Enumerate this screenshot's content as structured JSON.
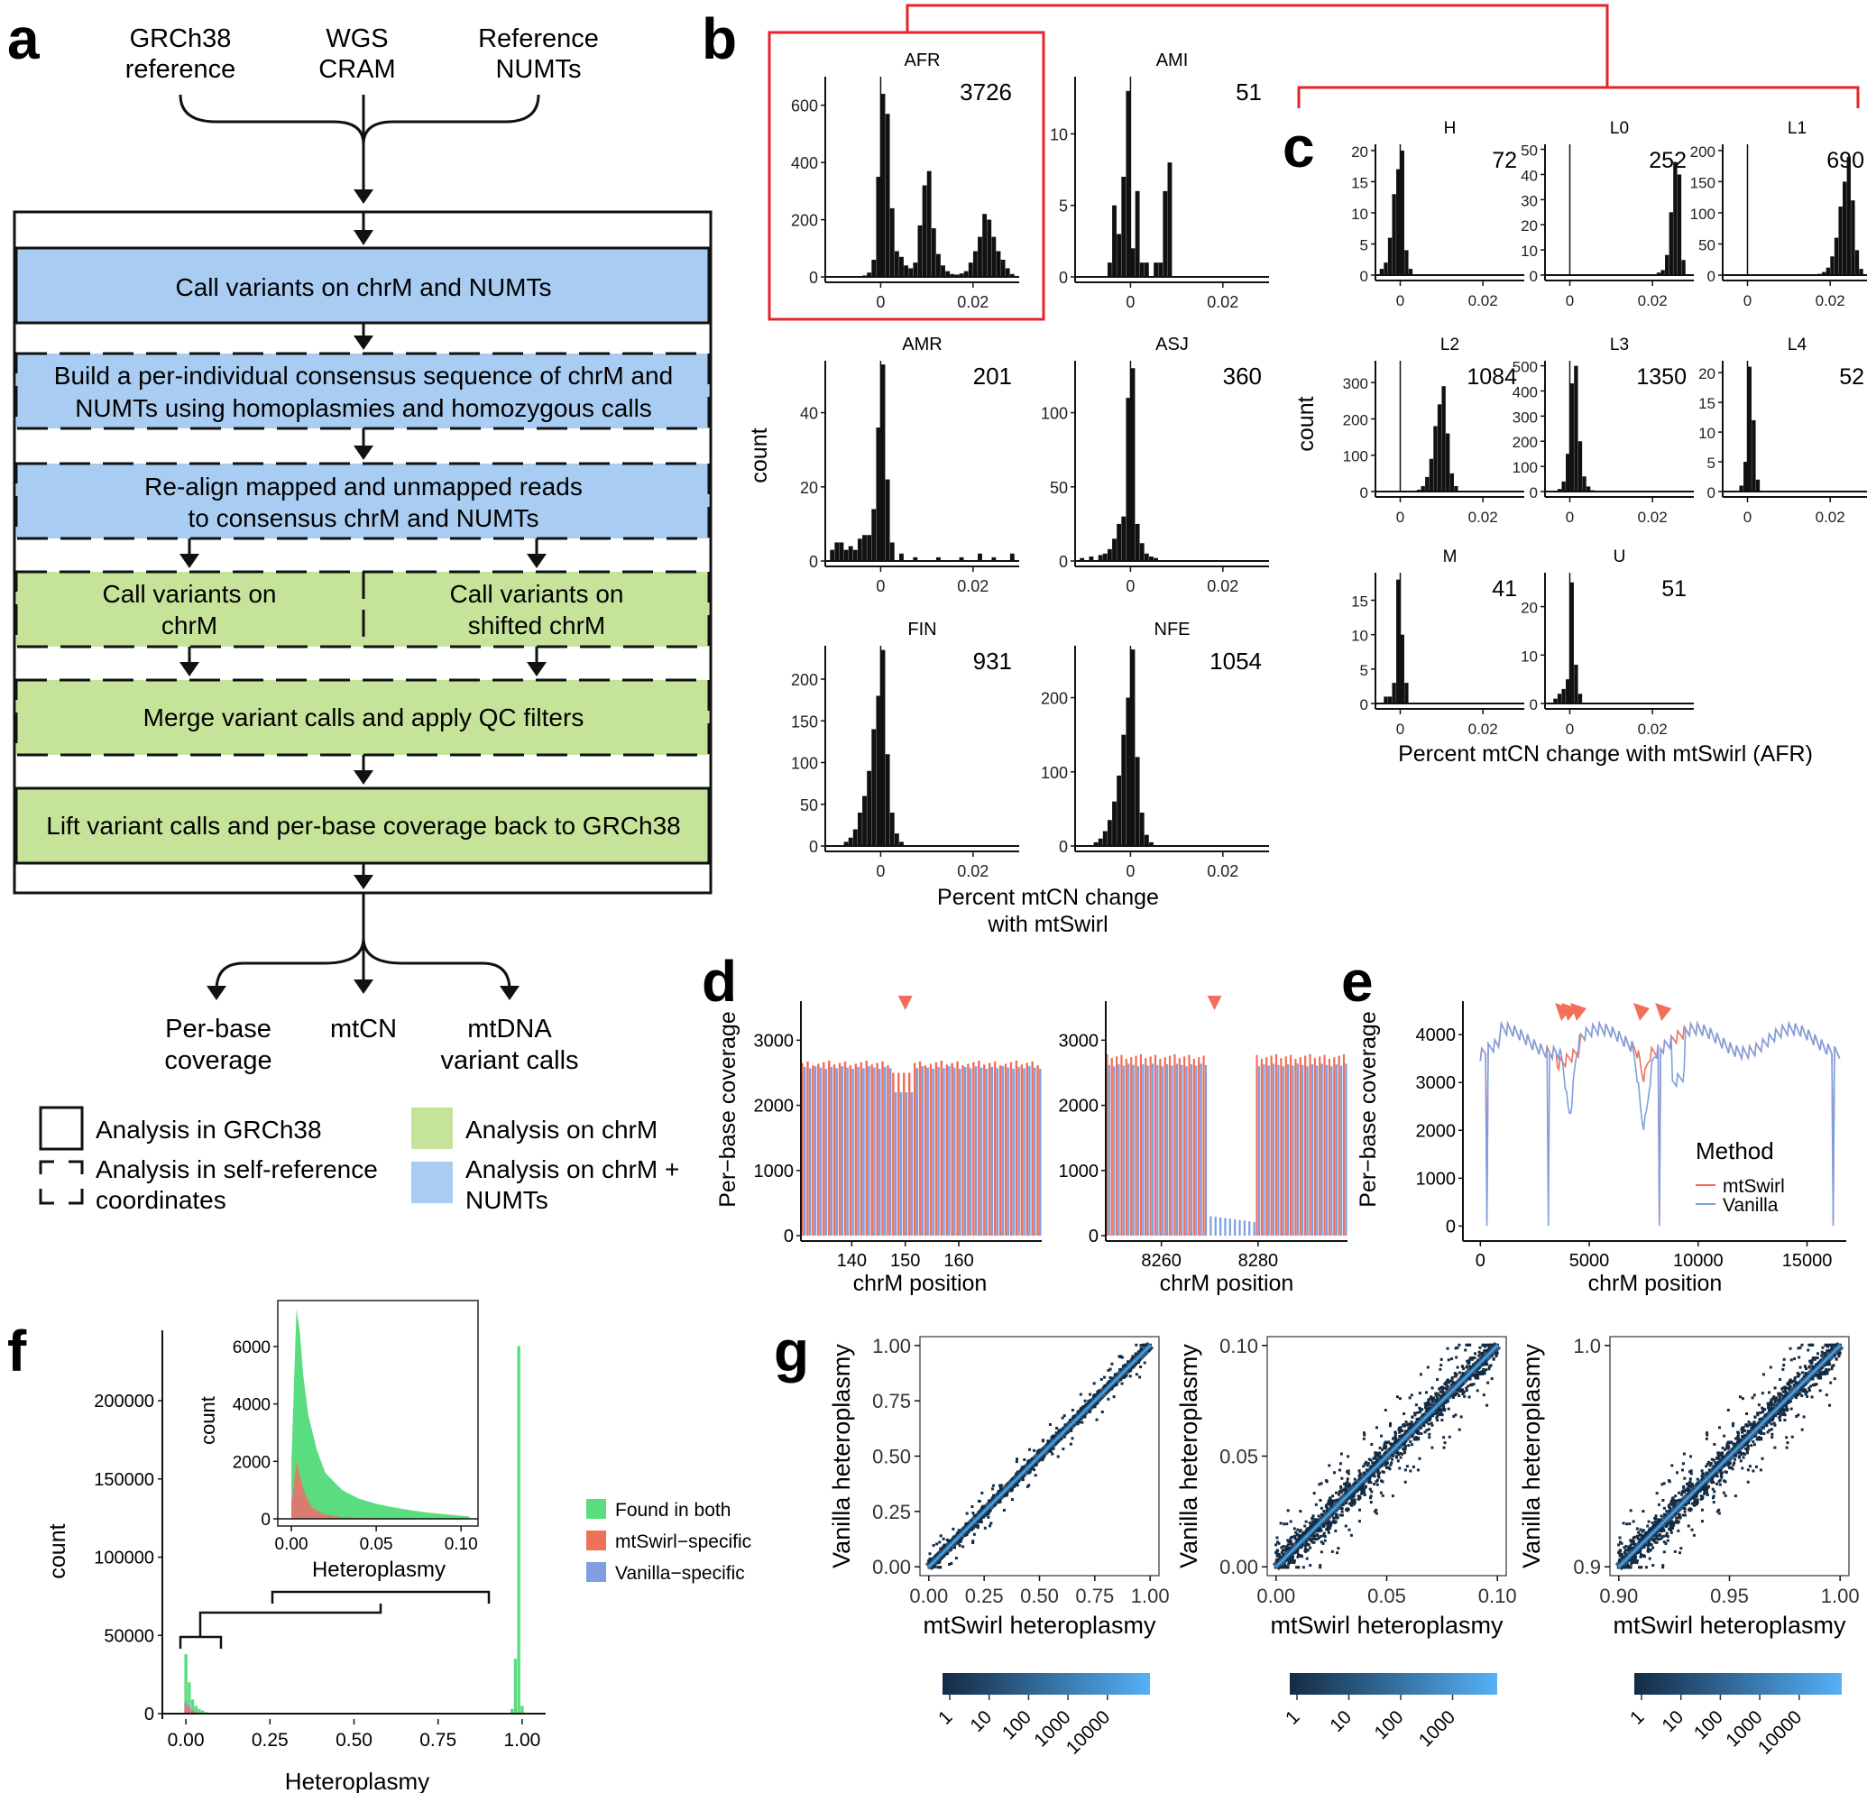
{
  "panels": {
    "a": {
      "letter": "a",
      "inputs": [
        [
          "GRCh38",
          "reference"
        ],
        [
          "WGS",
          "CRAM"
        ],
        [
          "Reference",
          "NUMTs"
        ]
      ],
      "steps": [
        [
          "Call variants on chrM and NUMTs"
        ],
        [
          "Build a per-individual consensus sequence of chrM and",
          "NUMTs using homoplasmies and homozygous calls"
        ],
        [
          "Re-align mapped and unmapped reads",
          "to consensus chrM and NUMTs"
        ],
        [
          "Call variants on",
          "chrM"
        ],
        [
          "Call variants on",
          "shifted chrM"
        ],
        [
          "Merge variant calls and apply QC filters"
        ],
        [
          "Lift variant calls and per-base coverage back to GRCh38"
        ]
      ],
      "outputs": [
        [
          "Per-base",
          "coverage"
        ],
        [
          "mtCN"
        ],
        [
          "mtDNA",
          "variant calls"
        ]
      ],
      "legend": {
        "grch38": "Analysis in GRCh38",
        "self_ref": [
          "Analysis in self-reference",
          "coordinates"
        ],
        "chrm": "Analysis on chrM",
        "chrm_numts": [
          "Analysis on chrM +",
          "NUMTs"
        ]
      },
      "colors": {
        "blue": "#a9cdf2",
        "green": "#c6e39a"
      }
    },
    "b": {
      "letter": "b",
      "xlabel": [
        "Percent mtCN change",
        "with mtSwirl"
      ],
      "ylabel": "count"
    },
    "c": {
      "letter": "c",
      "xlabel": "Percent mtCN change with mtSwirl (AFR)",
      "ylabel": "count"
    },
    "d": {
      "letter": "d",
      "ylabel": "Per−base coverage",
      "xlabel": "chrM position"
    },
    "e": {
      "letter": "e",
      "ylabel": "Per−base coverage",
      "xlabel": "chrM position",
      "legend_title": "Method",
      "legend_items": [
        "mtSwirl",
        "Vanilla"
      ]
    },
    "f": {
      "letter": "f",
      "xlabel": "Heteroplasmy",
      "ylabel": "count",
      "inset_xlabel": "Heteroplasmy",
      "inset_ylabel": "count",
      "legend_items": [
        "Found in both",
        "mtSwirl−specific",
        "Vanilla−specific"
      ]
    },
    "g": {
      "letter": "g",
      "xlabel": "mtSwirl heteroplasmy",
      "ylabel": "Vanilla heteroplasmy"
    }
  },
  "colors": {
    "accent_red": "#e3242b",
    "mtswirl": "#f0705a",
    "vanilla": "#7f9fe0",
    "found_both": "#59dd7e",
    "hist_black": "#111111",
    "density_dark": "#132b43",
    "density_light": "#56b1f7"
  },
  "chart_data": [
    {
      "id": "b-AFR",
      "type": "bar",
      "title": "AFR",
      "n_label": "3726",
      "xlim": [
        -0.012,
        0.03
      ],
      "ylim": [
        0,
        700
      ],
      "yticks": [
        "0",
        "200",
        "400",
        "600"
      ],
      "xticks": [
        "0",
        "0.02"
      ],
      "x": [
        -0.0035,
        -0.0025,
        -0.0015,
        -0.0005,
        0.0005,
        0.0015,
        0.0025,
        0.0035,
        0.0045,
        0.0055,
        0.0065,
        0.0075,
        0.0085,
        0.0095,
        0.0105,
        0.0115,
        0.0125,
        0.0135,
        0.0145,
        0.0155,
        0.0165,
        0.0175,
        0.0185,
        0.0195,
        0.0205,
        0.0215,
        0.0225,
        0.0235,
        0.0245,
        0.0255,
        0.0265,
        0.0275,
        0.0285
      ],
      "values": [
        5,
        15,
        60,
        350,
        640,
        570,
        240,
        90,
        70,
        40,
        30,
        50,
        180,
        320,
        370,
        170,
        80,
        40,
        20,
        10,
        8,
        12,
        20,
        50,
        90,
        140,
        220,
        200,
        140,
        90,
        60,
        30,
        10
      ]
    },
    {
      "id": "b-AMI",
      "type": "bar",
      "title": "AMI",
      "n_label": "51",
      "xlim": [
        -0.012,
        0.03
      ],
      "ylim": [
        0,
        14
      ],
      "yticks": [
        "0",
        "5",
        "10"
      ],
      "xticks": [
        "0",
        "0.02"
      ],
      "x": [
        -0.0045,
        -0.0035,
        -0.0025,
        -0.0015,
        -0.0005,
        0.0005,
        0.0015,
        0.0025,
        0.0035,
        0.0045,
        0.0055,
        0.0065,
        0.0075,
        0.0085
      ],
      "values": [
        1,
        5,
        3,
        7,
        13,
        2,
        6,
        1,
        1,
        0,
        1,
        1,
        6,
        8
      ]
    },
    {
      "id": "b-AMR",
      "type": "bar",
      "title": "AMR",
      "n_label": "201",
      "xlim": [
        -0.012,
        0.03
      ],
      "ylim": [
        0,
        54
      ],
      "yticks": [
        "0",
        "20",
        "40"
      ],
      "xticks": [
        "0",
        "0.02"
      ],
      "x": [
        -0.0105,
        -0.0095,
        -0.0085,
        -0.0075,
        -0.0065,
        -0.0055,
        -0.0045,
        -0.0035,
        -0.0025,
        -0.0015,
        -0.0005,
        0.0005,
        0.0015,
        0.0025,
        0.0045,
        0.0075,
        0.0125,
        0.0175,
        0.0215,
        0.0245,
        0.0285
      ],
      "values": [
        3,
        5,
        5,
        3,
        4,
        3,
        6,
        7,
        7,
        14,
        36,
        53,
        22,
        5,
        2,
        1,
        1,
        1,
        2,
        1,
        2
      ]
    },
    {
      "id": "b-ASJ",
      "type": "bar",
      "title": "ASJ",
      "n_label": "360",
      "xlim": [
        -0.012,
        0.03
      ],
      "ylim": [
        0,
        135
      ],
      "yticks": [
        "0",
        "50",
        "100"
      ],
      "xticks": [
        "0",
        "0.02"
      ],
      "x": [
        -0.0105,
        -0.0085,
        -0.0065,
        -0.0055,
        -0.0045,
        -0.0035,
        -0.0025,
        -0.0015,
        -0.0005,
        0.0005,
        0.0015,
        0.0025,
        0.0035,
        0.0045,
        0.0055
      ],
      "values": [
        2,
        3,
        4,
        5,
        8,
        15,
        25,
        30,
        110,
        130,
        25,
        12,
        5,
        3,
        2
      ]
    },
    {
      "id": "b-FIN",
      "type": "bar",
      "title": "FIN",
      "n_label": "931",
      "xlim": [
        -0.012,
        0.03
      ],
      "ylim": [
        0,
        240
      ],
      "yticks": [
        "0",
        "50",
        "100",
        "150",
        "200"
      ],
      "xticks": [
        "0",
        "0.02"
      ],
      "x": [
        -0.0075,
        -0.0065,
        -0.0055,
        -0.0045,
        -0.0035,
        -0.0025,
        -0.0015,
        -0.0005,
        0.0005,
        0.0015,
        0.0025,
        0.0035,
        0.0045
      ],
      "values": [
        5,
        10,
        20,
        40,
        60,
        90,
        140,
        180,
        235,
        110,
        40,
        15,
        5
      ]
    },
    {
      "id": "b-NFE",
      "type": "bar",
      "title": "NFE",
      "n_label": "1054",
      "xlim": [
        -0.012,
        0.03
      ],
      "ylim": [
        0,
        270
      ],
      "yticks": [
        "0",
        "100",
        "200"
      ],
      "xticks": [
        "0",
        "0.02"
      ],
      "x": [
        -0.0075,
        -0.0065,
        -0.0055,
        -0.0045,
        -0.0035,
        -0.0025,
        -0.0015,
        -0.0005,
        0.0005,
        0.0015,
        0.0025,
        0.0035,
        0.0045
      ],
      "values": [
        5,
        10,
        20,
        35,
        60,
        95,
        150,
        200,
        265,
        120,
        45,
        15,
        5
      ]
    },
    {
      "id": "c-H",
      "type": "bar",
      "title": "H",
      "n_label": "72",
      "xlim": [
        -0.006,
        0.03
      ],
      "ylim": [
        0,
        21
      ],
      "yticks": [
        "0",
        "5",
        "10",
        "15",
        "20"
      ],
      "xticks": [
        "0",
        "0.02"
      ],
      "x": [
        -0.0045,
        -0.0035,
        -0.0025,
        -0.0015,
        -0.0005,
        0.0005,
        0.0015,
        0.0025
      ],
      "values": [
        1,
        2,
        6,
        13,
        17,
        20,
        4,
        1
      ]
    },
    {
      "id": "c-L0",
      "type": "bar",
      "title": "L0",
      "n_label": "252",
      "xlim": [
        -0.006,
        0.03
      ],
      "ylim": [
        0,
        52
      ],
      "yticks": [
        "0",
        "10",
        "20",
        "30",
        "40",
        "50"
      ],
      "xticks": [
        "0",
        "0.02"
      ],
      "x": [
        0.0215,
        0.0225,
        0.0235,
        0.0245,
        0.0255,
        0.0265,
        0.0275
      ],
      "values": [
        1,
        2,
        8,
        25,
        45,
        40,
        6
      ]
    },
    {
      "id": "c-L1",
      "type": "bar",
      "title": "L1",
      "n_label": "690",
      "xlim": [
        -0.006,
        0.03
      ],
      "ylim": [
        0,
        210
      ],
      "yticks": [
        "0",
        "50",
        "100",
        "150",
        "200"
      ],
      "xticks": [
        "0",
        "0.02"
      ],
      "x": [
        0.0175,
        0.0185,
        0.0195,
        0.0205,
        0.0215,
        0.0225,
        0.0235,
        0.0245,
        0.0255,
        0.0265,
        0.0275
      ],
      "values": [
        2,
        5,
        12,
        30,
        60,
        110,
        150,
        190,
        120,
        40,
        10
      ]
    },
    {
      "id": "c-L2",
      "type": "bar",
      "title": "L2",
      "n_label": "1084",
      "xlim": [
        -0.006,
        0.03
      ],
      "ylim": [
        0,
        360
      ],
      "yticks": [
        "0",
        "100",
        "200",
        "300"
      ],
      "xticks": [
        "0",
        "0.02"
      ],
      "x": [
        0.0045,
        0.0055,
        0.0065,
        0.0075,
        0.0085,
        0.0095,
        0.0105,
        0.0115,
        0.0125,
        0.0135
      ],
      "values": [
        5,
        15,
        40,
        90,
        180,
        240,
        290,
        160,
        50,
        15
      ]
    },
    {
      "id": "c-L3",
      "type": "bar",
      "title": "L3",
      "n_label": "1350",
      "xlim": [
        -0.006,
        0.03
      ],
      "ylim": [
        0,
        520
      ],
      "yticks": [
        "0",
        "100",
        "200",
        "300",
        "400",
        "500"
      ],
      "xticks": [
        "0",
        "0.02"
      ],
      "x": [
        -0.0025,
        -0.0015,
        -0.0005,
        0.0005,
        0.0015,
        0.0025,
        0.0035,
        0.0045,
        0.0055
      ],
      "values": [
        10,
        40,
        150,
        430,
        500,
        200,
        60,
        20,
        5
      ]
    },
    {
      "id": "c-L4",
      "type": "bar",
      "title": "L4",
      "n_label": "52",
      "xlim": [
        -0.006,
        0.03
      ],
      "ylim": [
        0,
        22
      ],
      "yticks": [
        "0",
        "5",
        "10",
        "15",
        "20"
      ],
      "xticks": [
        "0",
        "0.02"
      ],
      "x": [
        -0.0015,
        -0.0005,
        0.0005,
        0.0015,
        0.0025
      ],
      "values": [
        1,
        5,
        21,
        12,
        2
      ]
    },
    {
      "id": "c-M",
      "type": "bar",
      "title": "M",
      "n_label": "41",
      "xlim": [
        -0.006,
        0.03
      ],
      "ylim": [
        0,
        19
      ],
      "yticks": [
        "0",
        "5",
        "10",
        "15"
      ],
      "xticks": [
        "0",
        "0.02"
      ],
      "x": [
        -0.0035,
        -0.0025,
        -0.0015,
        -0.0005,
        0.0005,
        0.0015
      ],
      "values": [
        1,
        1,
        3,
        18,
        10,
        3
      ]
    },
    {
      "id": "c-U",
      "type": "bar",
      "title": "U",
      "n_label": "51",
      "xlim": [
        -0.006,
        0.03
      ],
      "ylim": [
        0,
        27
      ],
      "yticks": [
        "0",
        "10",
        "20"
      ],
      "xticks": [
        "0",
        "0.02"
      ],
      "x": [
        -0.0035,
        -0.0025,
        -0.0015,
        -0.0005,
        0.0005,
        0.0015,
        0.0025
      ],
      "values": [
        1,
        2,
        3,
        5,
        25,
        8,
        2
      ]
    },
    {
      "id": "d-left",
      "type": "bar",
      "xlim": [
        130.5,
        175.5
      ],
      "ylim": [
        0,
        3600
      ],
      "yticks": [
        0,
        1000,
        2000,
        3000
      ],
      "xticks": [
        140,
        150,
        160
      ],
      "positions_from": 131,
      "positions_to": 175,
      "mtswirl_level": 2650,
      "vanilla_level": 2580,
      "gap_positions": [
        148,
        149,
        150,
        151
      ],
      "gap_mtswirl": 2500,
      "gap_vanilla": 2200,
      "marker_x": 150
    },
    {
      "id": "d-right",
      "type": "bar",
      "xlim": [
        8248.5,
        8298.5
      ],
      "ylim": [
        0,
        3600
      ],
      "yticks": [
        0,
        1000,
        2000,
        3000
      ],
      "xticks": [
        8260,
        8280
      ],
      "positions_from": 8249,
      "positions_to": 8298,
      "mtswirl_level": 2750,
      "vanilla_level": 2620,
      "deletion_from": 8270,
      "deletion_to": 8279,
      "deletion_vanilla": 300,
      "marker_x": 8271
    },
    {
      "id": "e",
      "type": "line",
      "xlim": [
        -800,
        16800
      ],
      "ylim": [
        -200,
        4700
      ],
      "yticks": [
        0,
        1000,
        2000,
        3000,
        4000
      ],
      "xticks": [
        0,
        5000,
        10000,
        15000
      ],
      "series": [
        {
          "name": "mtSwirl"
        },
        {
          "name": "Vanilla"
        }
      ],
      "vanilla_dips": [
        [
          300,
          0
        ],
        [
          3100,
          0
        ],
        [
          8200,
          0
        ],
        [
          16200,
          0
        ]
      ],
      "mtswirl_dips": [
        [
          300,
          100
        ],
        [
          8200,
          100
        ],
        [
          16200,
          100
        ]
      ],
      "markers": [
        3800,
        4100,
        4500,
        7400,
        8400
      ]
    },
    {
      "id": "f-main",
      "type": "bar",
      "xlim": [
        -0.07,
        1.07
      ],
      "ylim": [
        0,
        245000
      ],
      "yticks": [
        0,
        50000,
        100000,
        150000,
        200000
      ],
      "xticks": [
        "0.00",
        "0.25",
        "0.50",
        "0.75",
        "1.00"
      ],
      "bins": [
        0.0,
        0.01,
        0.02,
        0.03,
        0.04,
        0.05,
        0.06,
        0.97,
        0.98,
        0.99,
        1.0
      ],
      "found_both": [
        38000,
        20000,
        9000,
        5000,
        3000,
        2000,
        1000,
        3000,
        35000,
        235000,
        5000
      ],
      "mtswirl_specific": [
        6000,
        4000,
        2000,
        1000,
        500,
        300,
        200,
        0,
        0,
        0,
        0
      ],
      "vanilla_specific": [
        8000,
        5000,
        2500,
        1200,
        600,
        300,
        200,
        0,
        0,
        0,
        0
      ]
    },
    {
      "id": "f-inset",
      "type": "area",
      "xlim": [
        -0.008,
        0.11
      ],
      "ylim": [
        0,
        7600
      ],
      "yticks": [
        0,
        2000,
        4000,
        6000
      ],
      "xticks": [
        "0.00",
        "0.05",
        "0.10"
      ],
      "found_both_x": [
        0.0,
        0.003,
        0.005,
        0.007,
        0.01,
        0.015,
        0.02,
        0.03,
        0.04,
        0.05,
        0.06,
        0.07,
        0.08,
        0.09,
        0.1,
        0.105
      ],
      "found_both_y": [
        2000,
        7300,
        6500,
        5000,
        3600,
        2400,
        1600,
        1000,
        700,
        520,
        400,
        300,
        220,
        160,
        110,
        80
      ],
      "mtswirl_x": [
        0.0,
        0.003,
        0.005,
        0.008,
        0.012,
        0.02,
        0.03,
        0.05
      ],
      "mtswirl_y": [
        500,
        2000,
        1500,
        900,
        400,
        150,
        60,
        20
      ],
      "vanilla_x": [
        0.0,
        0.003,
        0.005,
        0.008,
        0.012,
        0.02,
        0.03,
        0.05
      ],
      "vanilla_y": [
        600,
        1500,
        1200,
        700,
        300,
        120,
        50,
        15
      ]
    },
    {
      "id": "g-1",
      "type": "heatmap",
      "xlim": [
        -0.04,
        1.04
      ],
      "ylim": [
        -0.04,
        1.04
      ],
      "xticks": [
        "0.00",
        "0.25",
        "0.50",
        "0.75",
        "1.00"
      ],
      "yticks": [
        "0.00",
        "0.25",
        "0.50",
        "0.75",
        "1.00"
      ],
      "scale_labels": [
        "1",
        "10",
        "100",
        "1000",
        "10000"
      ]
    },
    {
      "id": "g-2",
      "type": "heatmap",
      "xlim": [
        -0.004,
        0.104
      ],
      "ylim": [
        -0.004,
        0.104
      ],
      "xticks": [
        "0.00",
        "0.05",
        "0.10"
      ],
      "yticks": [
        "0.00",
        "0.05",
        "0.10"
      ],
      "scale_labels": [
        "1",
        "10",
        "100",
        "1000"
      ]
    },
    {
      "id": "g-3",
      "type": "heatmap",
      "xlim": [
        0.896,
        1.004
      ],
      "ylim": [
        0.896,
        1.004
      ],
      "xticks": [
        "0.90",
        "0.95",
        "1.00"
      ],
      "yticks": [
        "0.9",
        "1.0"
      ],
      "scale_labels": [
        "1",
        "10",
        "100",
        "1000",
        "10000"
      ]
    }
  ]
}
